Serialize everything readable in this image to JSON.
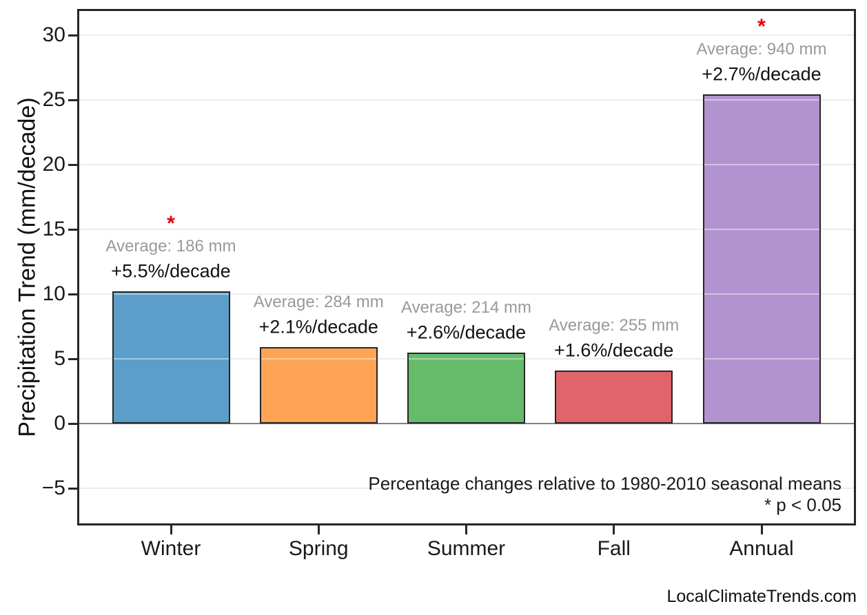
{
  "chart_data": {
    "type": "bar",
    "title": "",
    "xlabel": "",
    "ylabel": "Precipitation Trend (mm/decade)",
    "categories": [
      "Winter",
      "Spring",
      "Summer",
      "Fall",
      "Annual"
    ],
    "values": [
      10.2,
      5.9,
      5.5,
      4.1,
      25.4
    ],
    "ylim": [
      -7.9,
      32.1
    ],
    "yticks": [
      -5,
      0,
      5,
      10,
      15,
      20,
      25,
      30
    ],
    "ytick_labels": [
      "−5",
      "0",
      "5",
      "10",
      "15",
      "20",
      "25",
      "30"
    ],
    "grid": true,
    "legend": "none",
    "bar_colors": [
      "#5b9ec9",
      "#ffa455",
      "#66bb6a",
      "#e0646b",
      "#b293cf"
    ],
    "annotations": {
      "averages": [
        "Average: 186 mm",
        "Average: 284 mm",
        "Average: 214 mm",
        "Average: 255 mm",
        "Average: 940 mm"
      ],
      "trends": [
        "+5.5%/decade",
        "+2.1%/decade",
        "+2.6%/decade",
        "+1.6%/decade",
        "+2.7%/decade"
      ],
      "significant": [
        true,
        false,
        false,
        false,
        true
      ],
      "significance_marker": "*"
    },
    "notes": [
      "Percentage changes relative to 1980-2010 seasonal means",
      "* p < 0.05"
    ],
    "watermark": "LocalClimateTrends.com",
    "colors": {
      "bar_edge": "#262626",
      "gridline": "#ececec",
      "zero_line": "#808080",
      "frame": "#262626",
      "average_text": "#999999",
      "trend_text": "#111111",
      "significance_marker": "#e8000b",
      "tick_text": "#1a1a1a"
    }
  }
}
